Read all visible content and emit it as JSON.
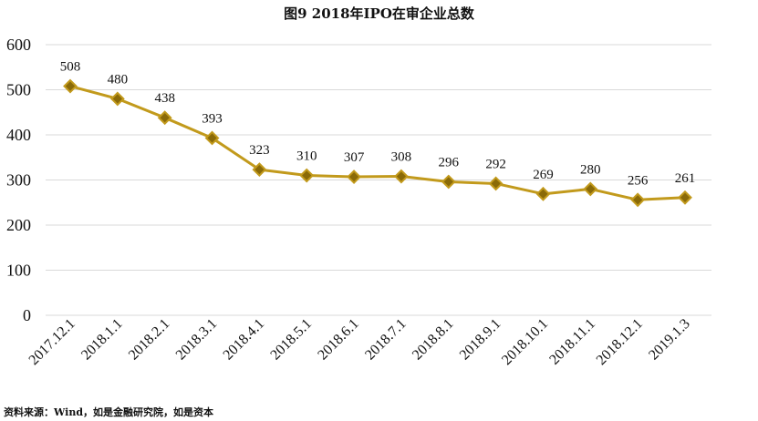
{
  "chart_data": {
    "type": "line",
    "title": "图9 2018年IPO在审企业总数",
    "categories": [
      "2017.12.1",
      "2018.1.1",
      "2018.2.1",
      "2018.3.1",
      "2018.4.1",
      "2018.5.1",
      "2018.6.1",
      "2018.7.1",
      "2018.8.1",
      "2018.9.1",
      "2018.10.1",
      "2018.11.1",
      "2018.12.1",
      "2019.1.3"
    ],
    "series": [
      {
        "values": [
          508,
          480,
          438,
          393,
          323,
          310,
          307,
          308,
          296,
          292,
          269,
          280,
          256,
          261
        ]
      }
    ],
    "ylim": [
      0,
      600
    ],
    "yticks": [
      0,
      100,
      200,
      300,
      400,
      500,
      600
    ],
    "grid": true,
    "legend": "none",
    "colors": {
      "line": "#c29a1c",
      "marker_fill": "#8a6a08",
      "marker_stroke": "#c29a1c",
      "grid": "#d9d9d9"
    },
    "source": "资料来源：Wind，如是金融研究院，如是资本"
  }
}
